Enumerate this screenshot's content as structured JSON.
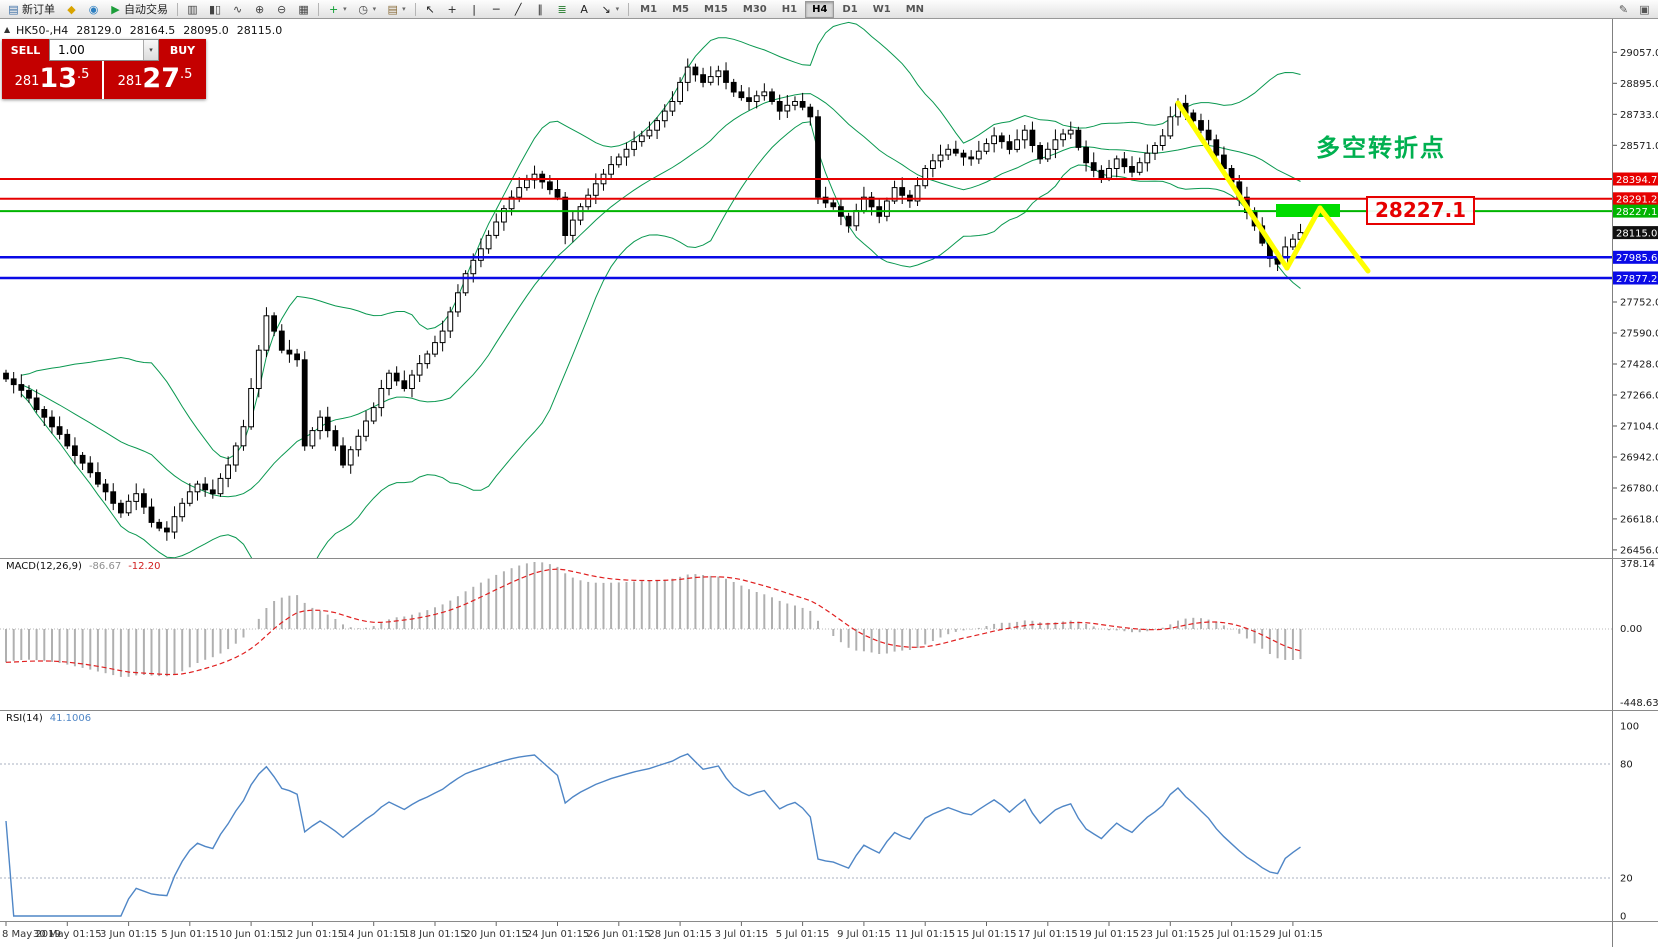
{
  "toolbar": {
    "groups": [
      {
        "name": "trading",
        "items": [
          {
            "name": "new-order-button",
            "glyph": "▤",
            "color": "#3b6ea5",
            "label": "新订单"
          },
          {
            "name": "metaeditor-button",
            "glyph": "◆",
            "color": "#d9a400"
          },
          {
            "name": "mql5-community-button",
            "glyph": "◉",
            "color": "#2d7fc1"
          },
          {
            "name": "autotrading-button",
            "glyph": "▶",
            "color": "#1c9e3a",
            "label": "自动交易"
          }
        ]
      },
      {
        "name": "chart-display",
        "items": [
          {
            "name": "bar-chart-button",
            "glyph": "▥",
            "color": "#444444"
          },
          {
            "name": "candlestick-chart-button",
            "glyph": "▮▯",
            "color": "#444444"
          },
          {
            "name": "line-chart-button",
            "glyph": "∿",
            "color": "#444444"
          },
          {
            "name": "zoom-in-button",
            "glyph": "⊕",
            "color": "#444444"
          },
          {
            "name": "zoom-out-button",
            "glyph": "⊖",
            "color": "#444444"
          },
          {
            "name": "tile-windows-button",
            "glyph": "▦",
            "color": "#444444"
          }
        ]
      },
      {
        "name": "chart-tools",
        "items": [
          {
            "name": "indicators-button",
            "glyph": "+",
            "color": "#0a9d2f",
            "dropdown": true
          },
          {
            "name": "periods-button",
            "glyph": "◷",
            "color": "#444444",
            "dropdown": true
          },
          {
            "name": "templates-button",
            "glyph": "▤",
            "color": "#8a6d3b",
            "dropdown": true
          }
        ]
      },
      {
        "name": "line-studies",
        "items": [
          {
            "name": "cursor-button",
            "glyph": "↖",
            "color": "#222222"
          },
          {
            "name": "crosshair-button",
            "glyph": "+",
            "color": "#222222"
          },
          {
            "name": "vertical-line-button",
            "glyph": "|",
            "color": "#222222"
          },
          {
            "name": "horizontal-line-button",
            "glyph": "─",
            "color": "#222222"
          },
          {
            "name": "trendline-button",
            "glyph": "╱",
            "color": "#222222"
          },
          {
            "name": "channel-button",
            "glyph": "∥",
            "color": "#222222"
          },
          {
            "name": "fibonacci-button",
            "glyph": "≣",
            "color": "#227a2a"
          },
          {
            "name": "text-button",
            "glyph": "A",
            "color": "#222222"
          },
          {
            "name": "arrows-button",
            "glyph": "↘",
            "color": "#222222",
            "dropdown": true
          }
        ]
      }
    ],
    "timeframes": [
      {
        "label": "M1",
        "active": false
      },
      {
        "label": "M5",
        "active": false
      },
      {
        "label": "M15",
        "active": false
      },
      {
        "label": "M30",
        "active": false
      },
      {
        "label": "H1",
        "active": false
      },
      {
        "label": "H4",
        "active": true
      },
      {
        "label": "D1",
        "active": false
      },
      {
        "label": "W1",
        "active": false
      },
      {
        "label": "MN",
        "active": false
      }
    ],
    "right_icons": [
      {
        "name": "pencil-button",
        "glyph": "✎",
        "color": "#555555"
      },
      {
        "name": "profile-button",
        "glyph": "▣",
        "color": "#555555"
      }
    ]
  },
  "chart": {
    "ohlc": {
      "symbol": "HK50-,H4",
      "open": "28129.0",
      "high": "28164.5",
      "low": "28095.0",
      "close": "28115.0"
    },
    "trade_panel": {
      "toggle_icon": "▲",
      "sell_label": "SELL",
      "buy_label": "BUY",
      "volume": "1.00",
      "sell_price": {
        "pre": "281",
        "big": "13",
        "sup": ".5"
      },
      "buy_price": {
        "pre": "281",
        "big": "27",
        "sup": ".5"
      }
    },
    "bollinger_color": "#0a9850",
    "levels": [
      {
        "price": 28394.7,
        "label": "28394.7",
        "color": "#e60000",
        "width": 2
      },
      {
        "price": 28291.2,
        "label": "28291.2",
        "color": "#e60000",
        "width": 2
      },
      {
        "price": 28227.1,
        "label": "28227.1",
        "color": "#00b400",
        "width": 2
      },
      {
        "price": 27985.6,
        "label": "27985.6",
        "color": "#0a0ae6",
        "width": 2.5
      },
      {
        "price": 27877.2,
        "label": "27877.2",
        "color": "#0a0ae6",
        "width": 2.5
      }
    ],
    "current_price": {
      "value": 28115.0,
      "label": "28115.0",
      "color": "#101010"
    },
    "axis_ticks": [
      {
        "value": 29057.0,
        "label": "29057.0"
      },
      {
        "value": 28895.0,
        "label": "28895.0"
      },
      {
        "value": 28733.0,
        "label": "28733.0"
      },
      {
        "value": 28571.0,
        "label": "28571.0"
      },
      {
        "value": 27752.0,
        "label": "27752.0"
      },
      {
        "value": 27590.0,
        "label": "27590.0"
      },
      {
        "value": 27428.0,
        "label": "27428.0"
      },
      {
        "value": 27266.0,
        "label": "27266.0"
      },
      {
        "value": 27104.0,
        "label": "27104.0"
      },
      {
        "value": 26942.0,
        "label": "26942.0"
      },
      {
        "value": 26780.0,
        "label": "26780.0"
      },
      {
        "value": 26618.0,
        "label": "26618.0"
      },
      {
        "value": 26456.0,
        "label": "26456.0"
      }
    ],
    "annotations": {
      "turning_point_text": "多空转折点",
      "turning_point_color": "#00b050",
      "price_label": "28227.1",
      "price_label_color": "#e60000"
    },
    "drawings": {
      "yellow_color": "#ffff00",
      "rect_color": "#00dc00",
      "yellow_segments": [
        [
          1178,
          103,
          1287,
          268
        ],
        [
          1287,
          268,
          1320,
          208
        ],
        [
          1320,
          208,
          1368,
          271
        ]
      ],
      "green_rect": [
        1276,
        204,
        64,
        13
      ]
    },
    "candles": {
      "closes": [
        27350,
        27320,
        27290,
        27250,
        27190,
        27150,
        27100,
        27060,
        27000,
        26950,
        26910,
        26860,
        26800,
        26760,
        26700,
        26650,
        26710,
        26750,
        26680,
        26600,
        26570,
        26550,
        26630,
        26700,
        26760,
        26800,
        26770,
        26750,
        26830,
        26900,
        27000,
        27100,
        27300,
        27500,
        27680,
        27600,
        27500,
        27480,
        27450,
        27000,
        27080,
        27150,
        27080,
        27000,
        26900,
        26980,
        27050,
        27130,
        27200,
        27300,
        27380,
        27340,
        27300,
        27370,
        27430,
        27480,
        27540,
        27600,
        27700,
        27800,
        27900,
        27970,
        28030,
        28100,
        28170,
        28240,
        28300,
        28350,
        28390,
        28420,
        28380,
        28340,
        28300,
        28100,
        28180,
        28250,
        28310,
        28370,
        28420,
        28470,
        28510,
        28550,
        28590,
        28620,
        28650,
        28700,
        28750,
        28800,
        28900,
        28980,
        28940,
        28900,
        28930,
        28960,
        28900,
        28850,
        28820,
        28800,
        28830,
        28850,
        28800,
        28750,
        28780,
        28800,
        28770,
        28720,
        28300,
        28270,
        28250,
        28200,
        28150,
        28230,
        28300,
        28250,
        28200,
        28280,
        28350,
        28310,
        28280,
        28360,
        28450,
        28490,
        28520,
        28550,
        28530,
        28510,
        28500,
        28540,
        28580,
        28620,
        28590,
        28550,
        28600,
        28650,
        28570,
        28500,
        28550,
        28600,
        28630,
        28650,
        28560,
        28480,
        28440,
        28400,
        28450,
        28500,
        28460,
        28430,
        28480,
        28530,
        28570,
        28620,
        28720,
        28790,
        28740,
        28700,
        28650,
        28600,
        28520,
        28450,
        28380,
        28300,
        28220,
        28150,
        28060,
        27980,
        27950,
        28040,
        28080,
        28115
      ]
    },
    "time_labels": [
      "8 May 2019",
      "30 May 01:15",
      "3 Jun 01:15",
      "5 Jun 01:15",
      "10 Jun 01:15",
      "12 Jun 01:15",
      "14 Jun 01:15",
      "18 Jun 01:15",
      "20 Jun 01:15",
      "24 Jun 01:15",
      "26 Jun 01:15",
      "28 Jun 01:15",
      "3 Jul 01:15",
      "5 Jul 01:15",
      "9 Jul 01:15",
      "11 Jul 01:15",
      "15 Jul 01:15",
      "17 Jul 01:15",
      "19 Jul 01:15",
      "23 Jul 01:15",
      "25 Jul 01:15",
      "29 Jul 01:15"
    ]
  },
  "macd": {
    "title": "MACD(12,26,9)",
    "value_main": "-86.67",
    "value_signal": "-12.20",
    "histogram_color": "#b0b0b0",
    "signal_color": "#e02020",
    "axis": [
      {
        "label": "378.14"
      },
      {
        "label": "0.00"
      },
      {
        "label": "-448.63"
      }
    ]
  },
  "rsi": {
    "title": "RSI(14)",
    "value": "41.1006",
    "line_color": "#4f86c6",
    "levels": [
      80,
      20
    ],
    "axis": [
      {
        "label": "100",
        "value": 100
      },
      {
        "label": "80",
        "value": 80
      },
      {
        "label": "20",
        "value": 20
      },
      {
        "label": "0",
        "value": 0
      }
    ]
  }
}
